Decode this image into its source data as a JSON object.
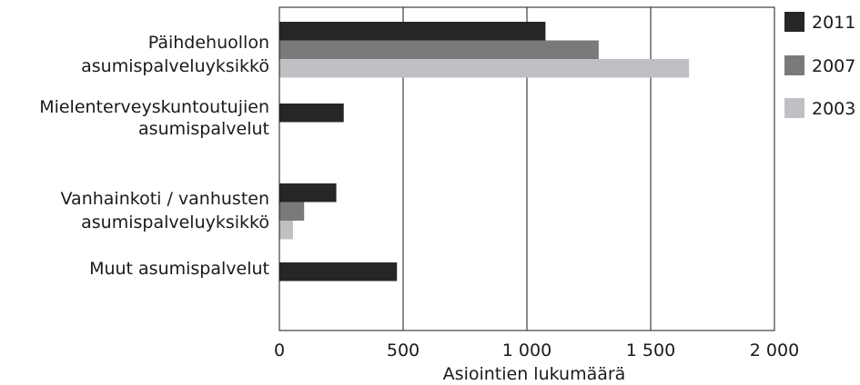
{
  "chart_data": {
    "type": "bar",
    "orientation": "horizontal",
    "title": "",
    "xlabel": "Asiointien lukumäärä",
    "ylabel": "",
    "xlim": [
      0,
      2000
    ],
    "x_ticks": [
      0,
      500,
      1000,
      1500,
      2000
    ],
    "x_tick_labels": [
      "0",
      "500",
      "1 000",
      "1 500",
      "2 000"
    ],
    "grid": "vertical",
    "legend_position": "right",
    "categories": [
      [
        "Päihdehuollon",
        "asumispalveluyksikkö"
      ],
      [
        "Mielenterveyskuntoutujien",
        "asumispalvelut"
      ],
      [
        "Vanhainkoti / vanhusten",
        "asumispalveluyksikkö"
      ],
      [
        "Muut asumispalvelut"
      ]
    ],
    "series": [
      {
        "name": "2011",
        "color": "#262626",
        "values": [
          1075,
          260,
          230,
          475
        ]
      },
      {
        "name": "2007",
        "color": "#7a7a7a",
        "values": [
          1290,
          0,
          100,
          0
        ]
      },
      {
        "name": "2003",
        "color": "#c0c0c4",
        "values": [
          1655,
          0,
          55,
          0
        ]
      }
    ]
  }
}
